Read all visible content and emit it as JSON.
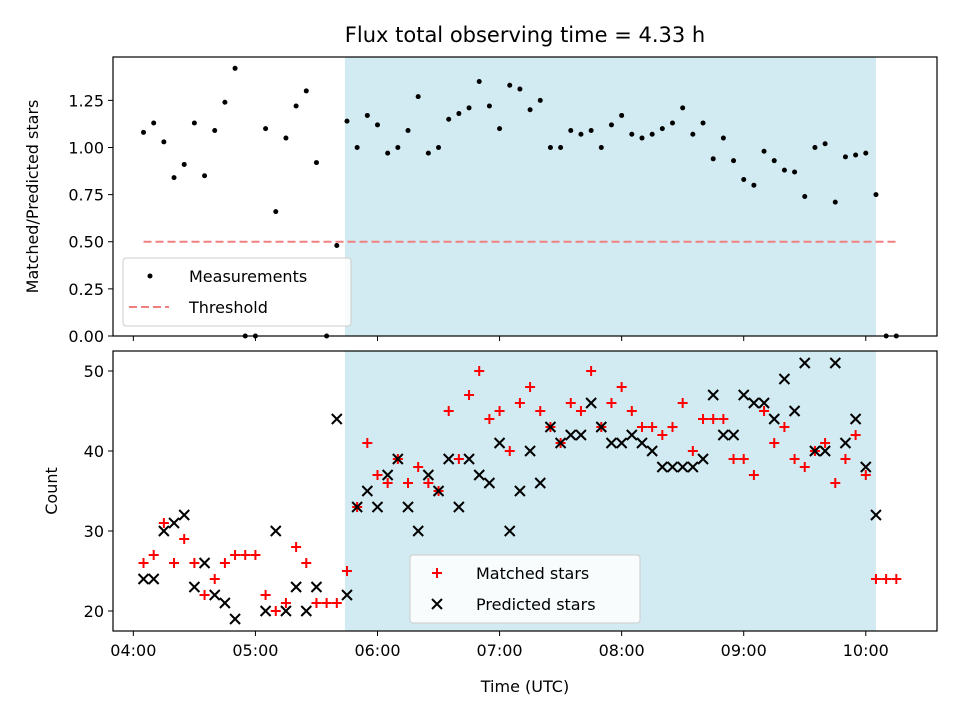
{
  "title": "Flux total observing time = 4.33 h",
  "chart_data": [
    {
      "type": "scatter",
      "ylabel": "Matched/Predicted stars",
      "xlim": [
        "03:50",
        "10:35"
      ],
      "ylim": [
        0,
        1.48
      ],
      "yticks": [
        "0.00",
        "0.25",
        "0.50",
        "0.75",
        "1.00",
        "1.25"
      ],
      "ytick_values": [
        0,
        0.25,
        0.5,
        0.75,
        1.0,
        1.25
      ],
      "shaded_span": [
        "05:44",
        "10:05"
      ],
      "shade_color": "#add8e6",
      "legend_position": "lower-left",
      "series": [
        {
          "name": "Measurements",
          "marker": "dot",
          "color": "#000000",
          "points": [
            [
              "04:05",
              1.08
            ],
            [
              "04:10",
              1.13
            ],
            [
              "04:15",
              1.03
            ],
            [
              "04:20",
              0.84
            ],
            [
              "04:25",
              0.91
            ],
            [
              "04:30",
              1.13
            ],
            [
              "04:35",
              0.85
            ],
            [
              "04:40",
              1.09
            ],
            [
              "04:45",
              1.24
            ],
            [
              "04:50",
              1.42
            ],
            [
              "04:55",
              0.0
            ],
            [
              "05:00",
              0.0
            ],
            [
              "05:05",
              1.1
            ],
            [
              "05:10",
              0.66
            ],
            [
              "05:15",
              1.05
            ],
            [
              "05:20",
              1.22
            ],
            [
              "05:25",
              1.3
            ],
            [
              "05:30",
              0.92
            ],
            [
              "05:35",
              0.0
            ],
            [
              "05:40",
              0.48
            ],
            [
              "05:45",
              1.14
            ],
            [
              "05:50",
              1.0
            ],
            [
              "05:55",
              1.17
            ],
            [
              "06:00",
              1.12
            ],
            [
              "06:05",
              0.97
            ],
            [
              "06:10",
              1.0
            ],
            [
              "06:15",
              1.09
            ],
            [
              "06:20",
              1.27
            ],
            [
              "06:25",
              0.97
            ],
            [
              "06:30",
              1.0
            ],
            [
              "06:35",
              1.15
            ],
            [
              "06:40",
              1.18
            ],
            [
              "06:45",
              1.21
            ],
            [
              "06:50",
              1.35
            ],
            [
              "06:55",
              1.22
            ],
            [
              "07:00",
              1.1
            ],
            [
              "07:05",
              1.33
            ],
            [
              "07:10",
              1.31
            ],
            [
              "07:15",
              1.2
            ],
            [
              "07:20",
              1.25
            ],
            [
              "07:25",
              1.0
            ],
            [
              "07:30",
              1.0
            ],
            [
              "07:35",
              1.09
            ],
            [
              "07:40",
              1.07
            ],
            [
              "07:45",
              1.09
            ],
            [
              "07:50",
              1.0
            ],
            [
              "07:55",
              1.12
            ],
            [
              "08:00",
              1.17
            ],
            [
              "08:05",
              1.07
            ],
            [
              "08:10",
              1.05
            ],
            [
              "08:15",
              1.07
            ],
            [
              "08:20",
              1.1
            ],
            [
              "08:25",
              1.13
            ],
            [
              "08:30",
              1.21
            ],
            [
              "08:35",
              1.07
            ],
            [
              "08:40",
              1.13
            ],
            [
              "08:45",
              0.94
            ],
            [
              "08:50",
              1.05
            ],
            [
              "08:55",
              0.93
            ],
            [
              "09:00",
              0.83
            ],
            [
              "09:05",
              0.8
            ],
            [
              "09:10",
              0.98
            ],
            [
              "09:15",
              0.93
            ],
            [
              "09:20",
              0.88
            ],
            [
              "09:25",
              0.87
            ],
            [
              "09:30",
              0.74
            ],
            [
              "09:35",
              1.0
            ],
            [
              "09:40",
              1.02
            ],
            [
              "09:45",
              0.71
            ],
            [
              "09:50",
              0.95
            ],
            [
              "09:55",
              0.96
            ],
            [
              "10:00",
              0.97
            ],
            [
              "10:05",
              0.75
            ],
            [
              "10:10",
              0.0
            ],
            [
              "10:15",
              0.0
            ]
          ]
        },
        {
          "name": "Threshold",
          "marker": "dashed-line",
          "color": "#f08080",
          "points": [
            [
              "04:05",
              0.5
            ],
            [
              "10:15",
              0.5
            ]
          ]
        }
      ]
    },
    {
      "type": "scatter",
      "xlabel": "Time (UTC)",
      "ylabel": "Count",
      "xlim": [
        "03:50",
        "10:35"
      ],
      "ylim": [
        17.5,
        52.5
      ],
      "xticks": [
        "04:00",
        "05:00",
        "06:00",
        "07:00",
        "08:00",
        "09:00",
        "10:00"
      ],
      "yticks": [
        "20",
        "30",
        "40",
        "50"
      ],
      "ytick_values": [
        20,
        30,
        40,
        50
      ],
      "shaded_span": [
        "05:44",
        "10:05"
      ],
      "shade_color": "#add8e6",
      "legend_position": "lower-center",
      "series": [
        {
          "name": "Matched stars",
          "marker": "plus",
          "color": "#ff0000",
          "points": [
            [
              "04:05",
              26
            ],
            [
              "04:10",
              27
            ],
            [
              "04:15",
              31
            ],
            [
              "04:20",
              26
            ],
            [
              "04:25",
              29
            ],
            [
              "04:30",
              26
            ],
            [
              "04:35",
              22
            ],
            [
              "04:40",
              24
            ],
            [
              "04:45",
              26
            ],
            [
              "04:50",
              27
            ],
            [
              "04:55",
              27
            ],
            [
              "05:00",
              27
            ],
            [
              "05:05",
              22
            ],
            [
              "05:10",
              20
            ],
            [
              "05:15",
              21
            ],
            [
              "05:20",
              28
            ],
            [
              "05:25",
              26
            ],
            [
              "05:30",
              21
            ],
            [
              "05:35",
              21
            ],
            [
              "05:40",
              21
            ],
            [
              "05:45",
              25
            ],
            [
              "05:50",
              33
            ],
            [
              "05:55",
              41
            ],
            [
              "06:00",
              37
            ],
            [
              "06:05",
              36
            ],
            [
              "06:10",
              39
            ],
            [
              "06:15",
              36
            ],
            [
              "06:20",
              38
            ],
            [
              "06:25",
              36
            ],
            [
              "06:30",
              35
            ],
            [
              "06:35",
              45
            ],
            [
              "06:40",
              39
            ],
            [
              "06:45",
              47
            ],
            [
              "06:50",
              50
            ],
            [
              "06:55",
              44
            ],
            [
              "07:00",
              45
            ],
            [
              "07:05",
              40
            ],
            [
              "07:10",
              46
            ],
            [
              "07:15",
              48
            ],
            [
              "07:20",
              45
            ],
            [
              "07:25",
              43
            ],
            [
              "07:30",
              41
            ],
            [
              "07:35",
              46
            ],
            [
              "07:40",
              45
            ],
            [
              "07:45",
              50
            ],
            [
              "07:50",
              43
            ],
            [
              "07:55",
              46
            ],
            [
              "08:00",
              48
            ],
            [
              "08:05",
              45
            ],
            [
              "08:10",
              43
            ],
            [
              "08:15",
              43
            ],
            [
              "08:20",
              42
            ],
            [
              "08:25",
              43
            ],
            [
              "08:30",
              46
            ],
            [
              "08:35",
              40
            ],
            [
              "08:40",
              44
            ],
            [
              "08:45",
              44
            ],
            [
              "08:50",
              44
            ],
            [
              "08:55",
              39
            ],
            [
              "09:00",
              39
            ],
            [
              "09:05",
              37
            ],
            [
              "09:10",
              45
            ],
            [
              "09:15",
              41
            ],
            [
              "09:20",
              43
            ],
            [
              "09:25",
              39
            ],
            [
              "09:30",
              38
            ],
            [
              "09:35",
              40
            ],
            [
              "09:40",
              41
            ],
            [
              "09:45",
              36
            ],
            [
              "09:50",
              39
            ],
            [
              "09:55",
              42
            ],
            [
              "10:00",
              37
            ],
            [
              "10:05",
              24
            ],
            [
              "10:10",
              24
            ],
            [
              "10:15",
              24
            ]
          ]
        },
        {
          "name": "Predicted stars",
          "marker": "x",
          "color": "#000000",
          "points": [
            [
              "04:05",
              24
            ],
            [
              "04:10",
              24
            ],
            [
              "04:15",
              30
            ],
            [
              "04:20",
              31
            ],
            [
              "04:25",
              32
            ],
            [
              "04:30",
              23
            ],
            [
              "04:35",
              26
            ],
            [
              "04:40",
              22
            ],
            [
              "04:45",
              21
            ],
            [
              "04:50",
              19
            ],
            [
              "05:05",
              20
            ],
            [
              "05:10",
              30
            ],
            [
              "05:15",
              20
            ],
            [
              "05:20",
              23
            ],
            [
              "05:25",
              20
            ],
            [
              "05:30",
              23
            ],
            [
              "05:40",
              44
            ],
            [
              "05:45",
              22
            ],
            [
              "05:50",
              33
            ],
            [
              "05:55",
              35
            ],
            [
              "06:00",
              33
            ],
            [
              "06:05",
              37
            ],
            [
              "06:10",
              39
            ],
            [
              "06:15",
              33
            ],
            [
              "06:20",
              30
            ],
            [
              "06:25",
              37
            ],
            [
              "06:30",
              35
            ],
            [
              "06:35",
              39
            ],
            [
              "06:40",
              33
            ],
            [
              "06:45",
              39
            ],
            [
              "06:50",
              37
            ],
            [
              "06:55",
              36
            ],
            [
              "07:00",
              41
            ],
            [
              "07:05",
              30
            ],
            [
              "07:10",
              35
            ],
            [
              "07:15",
              40
            ],
            [
              "07:20",
              36
            ],
            [
              "07:25",
              43
            ],
            [
              "07:30",
              41
            ],
            [
              "07:35",
              42
            ],
            [
              "07:40",
              42
            ],
            [
              "07:45",
              46
            ],
            [
              "07:50",
              43
            ],
            [
              "07:55",
              41
            ],
            [
              "08:00",
              41
            ],
            [
              "08:05",
              42
            ],
            [
              "08:10",
              41
            ],
            [
              "08:15",
              40
            ],
            [
              "08:20",
              38
            ],
            [
              "08:25",
              38
            ],
            [
              "08:30",
              38
            ],
            [
              "08:35",
              38
            ],
            [
              "08:40",
              39
            ],
            [
              "08:45",
              47
            ],
            [
              "08:50",
              42
            ],
            [
              "08:55",
              42
            ],
            [
              "09:00",
              47
            ],
            [
              "09:05",
              46
            ],
            [
              "09:10",
              46
            ],
            [
              "09:15",
              44
            ],
            [
              "09:20",
              49
            ],
            [
              "09:25",
              45
            ],
            [
              "09:30",
              51
            ],
            [
              "09:35",
              40
            ],
            [
              "09:40",
              40
            ],
            [
              "09:45",
              51
            ],
            [
              "09:50",
              41
            ],
            [
              "09:55",
              44
            ],
            [
              "10:00",
              38
            ],
            [
              "10:05",
              32
            ]
          ]
        }
      ]
    }
  ]
}
